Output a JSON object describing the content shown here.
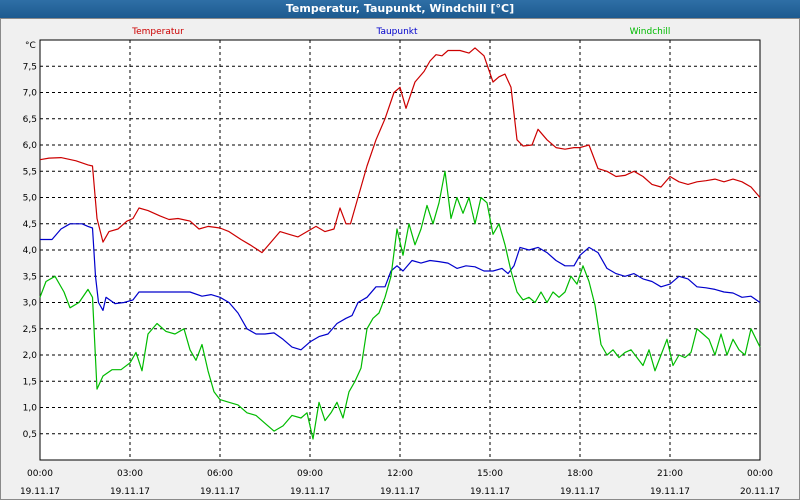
{
  "window": {
    "title": "Temperatur, Taupunkt, Windchill [°C]"
  },
  "chart_data": {
    "type": "line",
    "title": "Temperatur, Taupunkt, Windchill [°C]",
    "ylabel": "°C",
    "xlabel": "",
    "ylim": [
      0,
      8
    ],
    "xlim": [
      0,
      24
    ],
    "grid": true,
    "legend_placement": "top",
    "y_ticks": [
      "0,5",
      "1,0",
      "1,5",
      "2,0",
      "2,5",
      "3,0",
      "3,5",
      "4,0",
      "4,5",
      "5,0",
      "5,5",
      "6,0",
      "6,5",
      "7,0",
      "7,5"
    ],
    "y_tick_values": [
      0.5,
      1.0,
      1.5,
      2.0,
      2.5,
      3.0,
      3.5,
      4.0,
      4.5,
      5.0,
      5.5,
      6.0,
      6.5,
      7.0,
      7.5
    ],
    "x_ticks": [
      {
        "time": "00:00",
        "date": "19.11.17",
        "hour": 0
      },
      {
        "time": "03:00",
        "date": "19.11.17",
        "hour": 3
      },
      {
        "time": "06:00",
        "date": "19.11.17",
        "hour": 6
      },
      {
        "time": "09:00",
        "date": "19.11.17",
        "hour": 9
      },
      {
        "time": "12:00",
        "date": "19.11.17",
        "hour": 12
      },
      {
        "time": "15:00",
        "date": "19.11.17",
        "hour": 15
      },
      {
        "time": "18:00",
        "date": "19.11.17",
        "hour": 18
      },
      {
        "time": "21:00",
        "date": "19.11.17",
        "hour": 21
      },
      {
        "time": "00:00",
        "date": "20.11.17",
        "hour": 24
      }
    ],
    "series": [
      {
        "name": "Temperatur",
        "color": "#cc0000",
        "points": [
          [
            0,
            5.72
          ],
          [
            0.3,
            5.75
          ],
          [
            0.7,
            5.76
          ],
          [
            1.2,
            5.7
          ],
          [
            1.6,
            5.62
          ],
          [
            1.75,
            5.6
          ],
          [
            1.9,
            4.6
          ],
          [
            2.1,
            4.15
          ],
          [
            2.3,
            4.35
          ],
          [
            2.6,
            4.4
          ],
          [
            2.9,
            4.55
          ],
          [
            3.1,
            4.6
          ],
          [
            3.3,
            4.8
          ],
          [
            3.6,
            4.75
          ],
          [
            4.0,
            4.65
          ],
          [
            4.3,
            4.58
          ],
          [
            4.6,
            4.6
          ],
          [
            5.0,
            4.55
          ],
          [
            5.3,
            4.4
          ],
          [
            5.6,
            4.45
          ],
          [
            6.0,
            4.42
          ],
          [
            6.3,
            4.35
          ],
          [
            6.7,
            4.2
          ],
          [
            7.0,
            4.1
          ],
          [
            7.4,
            3.95
          ],
          [
            7.7,
            4.15
          ],
          [
            8.0,
            4.35
          ],
          [
            8.3,
            4.3
          ],
          [
            8.6,
            4.25
          ],
          [
            8.9,
            4.35
          ],
          [
            9.2,
            4.45
          ],
          [
            9.5,
            4.35
          ],
          [
            9.8,
            4.4
          ],
          [
            10.0,
            4.8
          ],
          [
            10.2,
            4.5
          ],
          [
            10.35,
            4.5
          ],
          [
            10.6,
            5.0
          ],
          [
            10.9,
            5.6
          ],
          [
            11.2,
            6.1
          ],
          [
            11.5,
            6.5
          ],
          [
            11.8,
            7.0
          ],
          [
            12.0,
            7.1
          ],
          [
            12.2,
            6.7
          ],
          [
            12.5,
            7.2
          ],
          [
            12.8,
            7.4
          ],
          [
            13.0,
            7.6
          ],
          [
            13.2,
            7.72
          ],
          [
            13.4,
            7.7
          ],
          [
            13.6,
            7.8
          ],
          [
            14.0,
            7.8
          ],
          [
            14.3,
            7.75
          ],
          [
            14.5,
            7.85
          ],
          [
            14.8,
            7.7
          ],
          [
            15.1,
            7.2
          ],
          [
            15.3,
            7.3
          ],
          [
            15.5,
            7.35
          ],
          [
            15.7,
            7.1
          ],
          [
            15.9,
            6.1
          ],
          [
            16.1,
            5.98
          ],
          [
            16.4,
            6.0
          ],
          [
            16.6,
            6.3
          ],
          [
            16.9,
            6.1
          ],
          [
            17.2,
            5.95
          ],
          [
            17.5,
            5.92
          ],
          [
            17.8,
            5.95
          ],
          [
            18.0,
            5.95
          ],
          [
            18.3,
            6.0
          ],
          [
            18.6,
            5.55
          ],
          [
            18.9,
            5.5
          ],
          [
            19.2,
            5.4
          ],
          [
            19.5,
            5.42
          ],
          [
            19.8,
            5.5
          ],
          [
            20.1,
            5.4
          ],
          [
            20.4,
            5.25
          ],
          [
            20.7,
            5.2
          ],
          [
            21.0,
            5.4
          ],
          [
            21.3,
            5.3
          ],
          [
            21.6,
            5.25
          ],
          [
            21.9,
            5.3
          ],
          [
            22.2,
            5.32
          ],
          [
            22.5,
            5.35
          ],
          [
            22.8,
            5.3
          ],
          [
            23.1,
            5.35
          ],
          [
            23.4,
            5.3
          ],
          [
            23.7,
            5.2
          ],
          [
            24,
            5.0
          ]
        ]
      },
      {
        "name": "Taupunkt",
        "color": "#0000cc",
        "points": [
          [
            0,
            4.2
          ],
          [
            0.4,
            4.2
          ],
          [
            0.7,
            4.4
          ],
          [
            1.0,
            4.5
          ],
          [
            1.4,
            4.5
          ],
          [
            1.6,
            4.45
          ],
          [
            1.75,
            4.42
          ],
          [
            1.85,
            3.5
          ],
          [
            1.95,
            3.0
          ],
          [
            2.1,
            2.85
          ],
          [
            2.2,
            3.1
          ],
          [
            2.5,
            2.98
          ],
          [
            2.8,
            3.0
          ],
          [
            3.1,
            3.05
          ],
          [
            3.3,
            3.2
          ],
          [
            3.6,
            3.2
          ],
          [
            4.0,
            3.2
          ],
          [
            4.5,
            3.2
          ],
          [
            5.0,
            3.2
          ],
          [
            5.4,
            3.12
          ],
          [
            5.7,
            3.15
          ],
          [
            6.0,
            3.1
          ],
          [
            6.3,
            3.0
          ],
          [
            6.6,
            2.8
          ],
          [
            6.9,
            2.5
          ],
          [
            7.2,
            2.4
          ],
          [
            7.5,
            2.4
          ],
          [
            7.8,
            2.42
          ],
          [
            8.1,
            2.3
          ],
          [
            8.4,
            2.15
          ],
          [
            8.7,
            2.1
          ],
          [
            9.0,
            2.25
          ],
          [
            9.3,
            2.35
          ],
          [
            9.6,
            2.4
          ],
          [
            9.9,
            2.6
          ],
          [
            10.2,
            2.7
          ],
          [
            10.4,
            2.75
          ],
          [
            10.6,
            3.0
          ],
          [
            10.9,
            3.1
          ],
          [
            11.2,
            3.3
          ],
          [
            11.5,
            3.3
          ],
          [
            11.7,
            3.6
          ],
          [
            11.9,
            3.7
          ],
          [
            12.1,
            3.6
          ],
          [
            12.4,
            3.8
          ],
          [
            12.7,
            3.75
          ],
          [
            13.0,
            3.8
          ],
          [
            13.3,
            3.78
          ],
          [
            13.6,
            3.75
          ],
          [
            13.9,
            3.65
          ],
          [
            14.2,
            3.7
          ],
          [
            14.5,
            3.68
          ],
          [
            14.8,
            3.6
          ],
          [
            15.1,
            3.6
          ],
          [
            15.4,
            3.65
          ],
          [
            15.6,
            3.55
          ],
          [
            15.8,
            3.7
          ],
          [
            16.0,
            4.05
          ],
          [
            16.3,
            4.0
          ],
          [
            16.6,
            4.05
          ],
          [
            16.9,
            3.95
          ],
          [
            17.2,
            3.8
          ],
          [
            17.5,
            3.7
          ],
          [
            17.8,
            3.7
          ],
          [
            18.0,
            3.9
          ],
          [
            18.3,
            4.05
          ],
          [
            18.6,
            3.95
          ],
          [
            18.9,
            3.65
          ],
          [
            19.2,
            3.55
          ],
          [
            19.5,
            3.5
          ],
          [
            19.8,
            3.55
          ],
          [
            20.1,
            3.45
          ],
          [
            20.4,
            3.4
          ],
          [
            20.7,
            3.3
          ],
          [
            21.0,
            3.35
          ],
          [
            21.3,
            3.5
          ],
          [
            21.6,
            3.45
          ],
          [
            21.9,
            3.3
          ],
          [
            22.2,
            3.28
          ],
          [
            22.5,
            3.25
          ],
          [
            22.8,
            3.2
          ],
          [
            23.1,
            3.18
          ],
          [
            23.4,
            3.1
          ],
          [
            23.7,
            3.12
          ],
          [
            24,
            3.0
          ]
        ]
      },
      {
        "name": "Windchill",
        "color": "#00bb00",
        "points": [
          [
            0,
            3.1
          ],
          [
            0.2,
            3.4
          ],
          [
            0.5,
            3.5
          ],
          [
            0.8,
            3.2
          ],
          [
            1.0,
            2.9
          ],
          [
            1.3,
            3.0
          ],
          [
            1.6,
            3.25
          ],
          [
            1.75,
            3.1
          ],
          [
            1.9,
            1.35
          ],
          [
            2.1,
            1.6
          ],
          [
            2.4,
            1.72
          ],
          [
            2.7,
            1.72
          ],
          [
            3.0,
            1.85
          ],
          [
            3.2,
            2.05
          ],
          [
            3.4,
            1.7
          ],
          [
            3.6,
            2.4
          ],
          [
            3.9,
            2.6
          ],
          [
            4.2,
            2.45
          ],
          [
            4.5,
            2.4
          ],
          [
            4.8,
            2.5
          ],
          [
            5.0,
            2.1
          ],
          [
            5.2,
            1.9
          ],
          [
            5.4,
            2.2
          ],
          [
            5.6,
            1.7
          ],
          [
            5.8,
            1.3
          ],
          [
            6.0,
            1.15
          ],
          [
            6.3,
            1.1
          ],
          [
            6.6,
            1.05
          ],
          [
            6.9,
            0.9
          ],
          [
            7.2,
            0.85
          ],
          [
            7.5,
            0.7
          ],
          [
            7.8,
            0.55
          ],
          [
            8.1,
            0.65
          ],
          [
            8.4,
            0.85
          ],
          [
            8.7,
            0.8
          ],
          [
            8.9,
            0.9
          ],
          [
            9.1,
            0.4
          ],
          [
            9.3,
            1.1
          ],
          [
            9.5,
            0.75
          ],
          [
            9.7,
            0.9
          ],
          [
            9.9,
            1.1
          ],
          [
            10.1,
            0.8
          ],
          [
            10.3,
            1.3
          ],
          [
            10.5,
            1.5
          ],
          [
            10.7,
            1.75
          ],
          [
            10.9,
            2.5
          ],
          [
            11.1,
            2.7
          ],
          [
            11.3,
            2.8
          ],
          [
            11.5,
            3.1
          ],
          [
            11.7,
            3.5
          ],
          [
            11.9,
            4.4
          ],
          [
            12.1,
            3.9
          ],
          [
            12.3,
            4.5
          ],
          [
            12.5,
            4.1
          ],
          [
            12.7,
            4.4
          ],
          [
            12.9,
            4.85
          ],
          [
            13.1,
            4.5
          ],
          [
            13.3,
            4.9
          ],
          [
            13.5,
            5.5
          ],
          [
            13.7,
            4.6
          ],
          [
            13.9,
            5.0
          ],
          [
            14.1,
            4.7
          ],
          [
            14.3,
            5.0
          ],
          [
            14.5,
            4.5
          ],
          [
            14.7,
            5.0
          ],
          [
            14.9,
            4.9
          ],
          [
            15.1,
            4.3
          ],
          [
            15.3,
            4.5
          ],
          [
            15.5,
            4.1
          ],
          [
            15.7,
            3.6
          ],
          [
            15.9,
            3.2
          ],
          [
            16.1,
            3.05
          ],
          [
            16.3,
            3.1
          ],
          [
            16.5,
            3.0
          ],
          [
            16.7,
            3.2
          ],
          [
            16.9,
            3.0
          ],
          [
            17.1,
            3.2
          ],
          [
            17.3,
            3.1
          ],
          [
            17.5,
            3.2
          ],
          [
            17.7,
            3.5
          ],
          [
            17.9,
            3.35
          ],
          [
            18.1,
            3.7
          ],
          [
            18.3,
            3.4
          ],
          [
            18.5,
            2.95
          ],
          [
            18.7,
            2.2
          ],
          [
            18.9,
            2.0
          ],
          [
            19.1,
            2.1
          ],
          [
            19.3,
            1.95
          ],
          [
            19.5,
            2.05
          ],
          [
            19.7,
            2.1
          ],
          [
            19.9,
            1.95
          ],
          [
            20.1,
            1.8
          ],
          [
            20.3,
            2.1
          ],
          [
            20.5,
            1.7
          ],
          [
            20.7,
            2.0
          ],
          [
            20.9,
            2.3
          ],
          [
            21.1,
            1.8
          ],
          [
            21.3,
            2.0
          ],
          [
            21.5,
            1.95
          ],
          [
            21.7,
            2.05
          ],
          [
            21.9,
            2.5
          ],
          [
            22.1,
            2.4
          ],
          [
            22.3,
            2.3
          ],
          [
            22.5,
            2.0
          ],
          [
            22.7,
            2.4
          ],
          [
            22.9,
            2.0
          ],
          [
            23.1,
            2.3
          ],
          [
            23.3,
            2.1
          ],
          [
            23.5,
            2.0
          ],
          [
            23.7,
            2.5
          ],
          [
            24,
            2.15
          ]
        ]
      }
    ]
  }
}
